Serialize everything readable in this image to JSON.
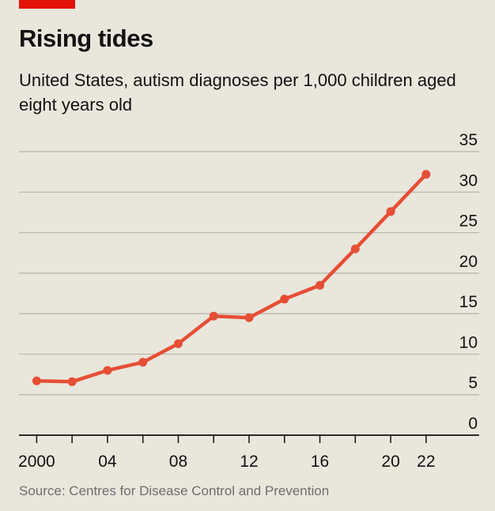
{
  "chart_data": {
    "type": "line",
    "title": "Rising tides",
    "subtitle": "United States, autism diagnoses per 1,000 children aged eight years old",
    "source": "Source: Centres for Disease Control and Prevention",
    "xlabel": "",
    "ylabel": "",
    "x": [
      2000,
      2002,
      2004,
      2006,
      2008,
      2010,
      2012,
      2014,
      2016,
      2018,
      2020,
      2022
    ],
    "series": [
      {
        "name": "Autism diagnoses per 1,000 children aged eight",
        "values": [
          6.7,
          6.6,
          8.0,
          9.0,
          11.3,
          14.7,
          14.5,
          16.8,
          18.5,
          23.0,
          27.6,
          32.2
        ]
      }
    ],
    "xlim": [
      1999,
      2025
    ],
    "ylim": [
      0,
      35
    ],
    "yticks": [
      0,
      5,
      10,
      15,
      20,
      25,
      30,
      35
    ],
    "xticks": [
      2000,
      2002,
      2004,
      2006,
      2008,
      2010,
      2012,
      2014,
      2016,
      2018,
      2020,
      2022
    ],
    "xtick_labels": [
      "2000",
      "",
      "04",
      "",
      "08",
      "",
      "12",
      "",
      "16",
      "",
      "20",
      "22"
    ],
    "grid": true,
    "line_color": "#e64e35",
    "grid_color": "#b7b4ad",
    "axis_color": "#121212"
  }
}
